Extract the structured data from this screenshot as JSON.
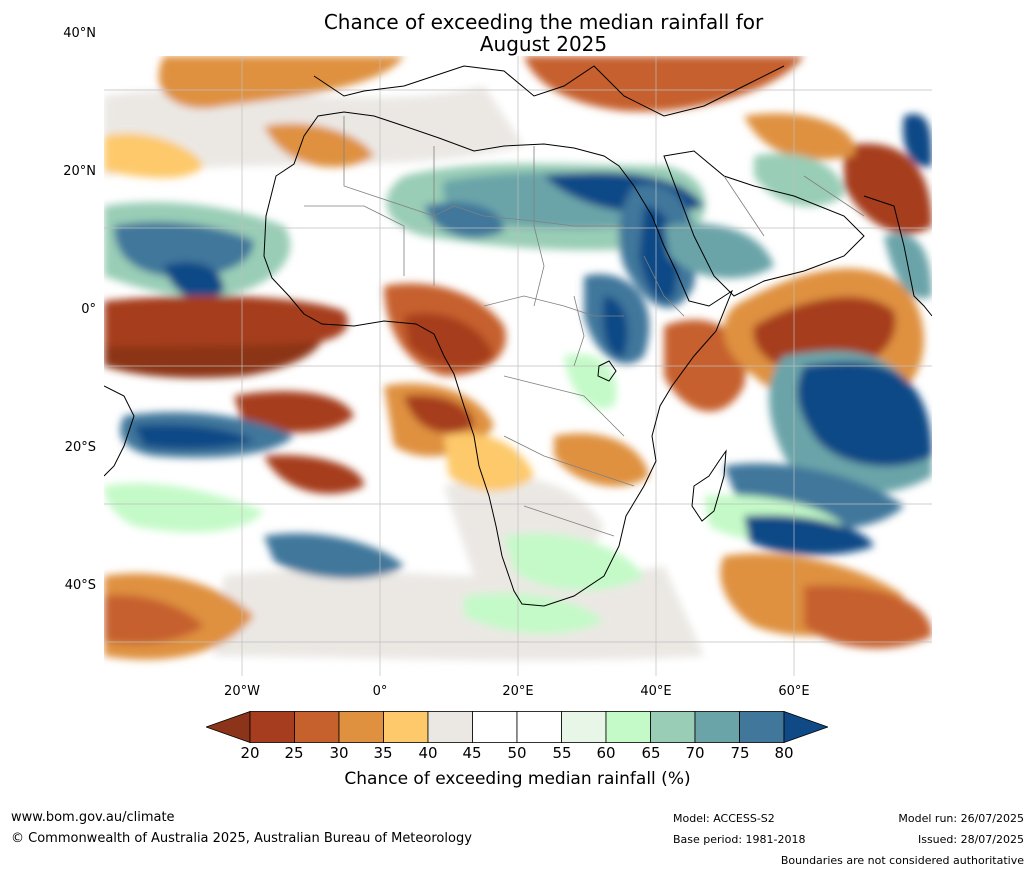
{
  "title_line1": "Chance of exceeding the median rainfall for",
  "title_line2": "August 2025",
  "lat_labels": [
    "40°N",
    "20°N",
    "0°",
    "20°S",
    "40°S"
  ],
  "lon_labels": [
    "20°W",
    "0°",
    "20°E",
    "40°E",
    "60°E"
  ],
  "colorbar": {
    "label": "Chance of exceeding median rainfall (%)",
    "ticks": [
      "20",
      "25",
      "30",
      "35",
      "40",
      "45",
      "50",
      "55",
      "60",
      "65",
      "70",
      "75",
      "80"
    ],
    "under_color": "#8c3419",
    "over_color": "#0f4a86",
    "bin_colors": [
      "#a63d1f",
      "#c6612e",
      "#df9140",
      "#fdc96a",
      "#ebe8e4",
      "#ffffff",
      "#ffffff",
      "#e7f6e7",
      "#c4fac8",
      "#99cdb6",
      "#6aa4a9",
      "#40779b"
    ]
  },
  "footer": {
    "website": "www.bom.gov.au/climate",
    "copyright": "© Commonwealth of Australia 2025, Australian Bureau of Meteorology",
    "model": "Model: ACCESS-S2",
    "base_period": "Base period: 1981-2018",
    "model_run": "Model run: 26/07/2025",
    "issued": "Issued: 28/07/2025",
    "disclaimer": "Boundaries are not considered authoritative"
  }
}
